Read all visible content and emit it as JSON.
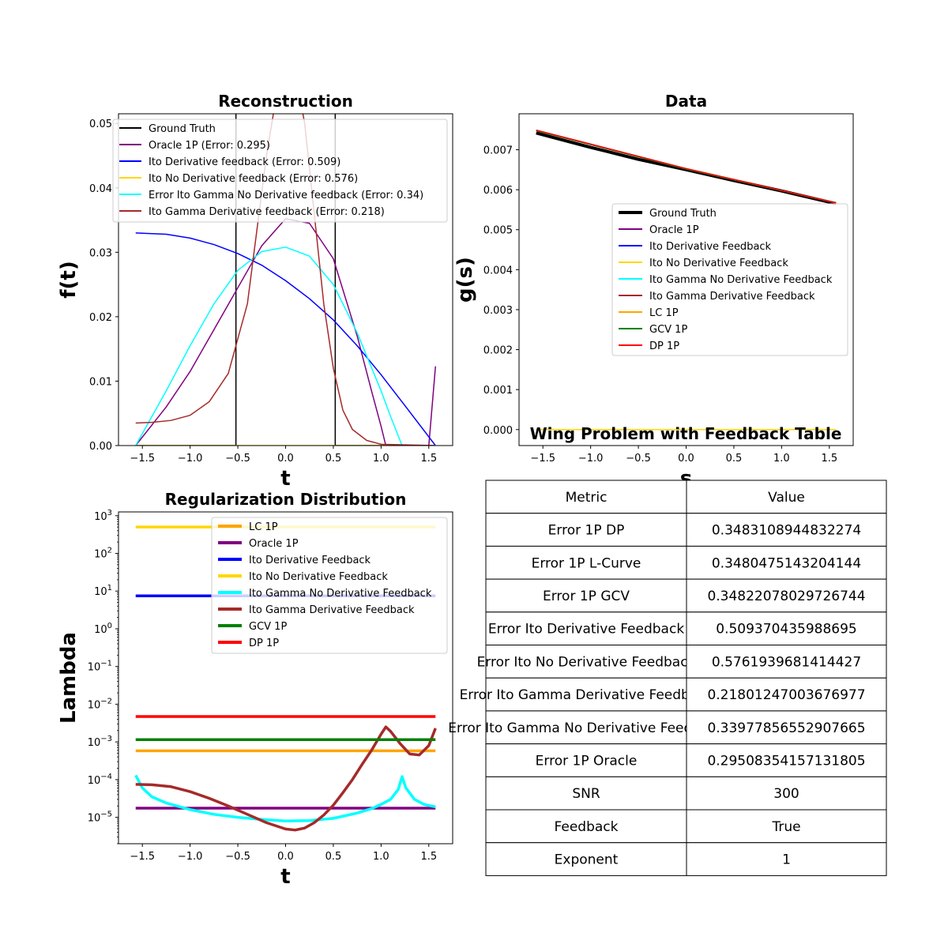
{
  "chart_data": [
    {
      "id": "reconstruction",
      "type": "line",
      "title": "Reconstruction",
      "xlabel": "t",
      "ylabel": "f(t)",
      "xlim": [
        -1.75,
        1.75
      ],
      "ylim": [
        0,
        0.0515
      ],
      "xticks": [
        "-1.5",
        "-1.0",
        "-0.5",
        "0.0",
        "0.5",
        "1.0",
        "1.5"
      ],
      "yticks": [
        "0.00",
        "0.01",
        "0.02",
        "0.03",
        "0.04",
        "0.05"
      ],
      "legend_position": "top-right",
      "series": [
        {
          "name": "Ground Truth",
          "color": "#000000",
          "x": [
            -1.57,
            -0.52,
            -0.52,
            0.52,
            0.52,
            1.57
          ],
          "y": [
            0,
            0,
            0.052,
            0.052,
            0,
            0
          ]
        },
        {
          "name": "Oracle 1P (Error: 0.295)",
          "color": "#800080",
          "x": [
            -1.57,
            -1.25,
            -1.0,
            -0.75,
            -0.5,
            -0.25,
            0.0,
            0.25,
            0.5,
            0.75,
            0.9,
            1.0,
            1.05,
            1.2,
            1.5,
            1.57
          ],
          "y": [
            0,
            0.006,
            0.0115,
            0.018,
            0.0245,
            0.031,
            0.0352,
            0.0345,
            0.029,
            0.017,
            0.0085,
            0.003,
            0,
            0,
            0,
            0.0123
          ]
        },
        {
          "name": "Ito Derivative feedback (Error: 0.509)",
          "color": "#0000ff",
          "x": [
            -1.57,
            -1.25,
            -1.0,
            -0.75,
            -0.5,
            -0.25,
            0.0,
            0.25,
            0.5,
            0.75,
            1.0,
            1.25,
            1.57
          ],
          "y": [
            0.033,
            0.0328,
            0.0322,
            0.0312,
            0.0298,
            0.028,
            0.0256,
            0.0228,
            0.0195,
            0.0155,
            0.011,
            0.0062,
            0
          ]
        },
        {
          "name": "Ito No Derivative feedback (Error: 0.576)",
          "color": "#ffd700",
          "x": [
            -1.57,
            1.57
          ],
          "y": [
            0,
            0
          ]
        },
        {
          "name": "Error Ito Gamma No Derivative feedback (Error: 0.34)",
          "color": "#00ffff",
          "x": [
            -1.57,
            -1.25,
            -1.0,
            -0.75,
            -0.5,
            -0.25,
            0.0,
            0.25,
            0.5,
            0.75,
            1.0,
            1.1,
            1.22,
            1.57
          ],
          "y": [
            0,
            0.0085,
            0.0155,
            0.022,
            0.0272,
            0.0301,
            0.0308,
            0.0294,
            0.025,
            0.0175,
            0.0085,
            0.0045,
            0,
            0
          ]
        },
        {
          "name": "Ito Gamma Derivative feedback (Error: 0.218)",
          "color": "#a52a2a",
          "x": [
            -1.57,
            -1.4,
            -1.2,
            -1.0,
            -0.8,
            -0.6,
            -0.4,
            -0.2,
            -0.1,
            0.0,
            0.1,
            0.2,
            0.3,
            0.4,
            0.5,
            0.6,
            0.7,
            0.85,
            1.0,
            1.57
          ],
          "y": [
            0.0035,
            0.0036,
            0.0039,
            0.0047,
            0.0068,
            0.0112,
            0.022,
            0.045,
            0.054,
            0.06,
            0.058,
            0.05,
            0.036,
            0.022,
            0.012,
            0.0055,
            0.0025,
            0.0008,
            0.0002,
            0
          ]
        }
      ]
    },
    {
      "id": "data",
      "type": "line",
      "title": "Data",
      "xlabel": "s",
      "ylabel": "g(s)",
      "xlim": [
        -1.75,
        1.75
      ],
      "ylim": [
        -0.0004,
        0.0079
      ],
      "xticks": [
        "-1.5",
        "-1.0",
        "-0.5",
        "0.0",
        "0.5",
        "1.0",
        "1.5"
      ],
      "yticks": [
        "0.000",
        "0.001",
        "0.002",
        "0.003",
        "0.004",
        "0.005",
        "0.006",
        "0.007"
      ],
      "legend_position": "center-right",
      "series": [
        {
          "name": "Ground Truth",
          "color": "#000000",
          "width": 4,
          "x": [
            -1.57,
            -1.0,
            -0.5,
            0.0,
            0.5,
            1.0,
            1.57
          ],
          "y": [
            0.00742,
            0.00706,
            0.00676,
            0.0065,
            0.00623,
            0.00597,
            0.00565
          ]
        },
        {
          "name": "Oracle 1P",
          "color": "#800080",
          "width": 1.5,
          "x": [
            -1.57,
            0.0,
            1.57
          ],
          "y": [
            0.00748,
            0.00652,
            0.00567
          ]
        },
        {
          "name": "Ito Derivative Feedback",
          "color": "#0000ff",
          "width": 1.5,
          "x": [
            -1.57,
            0.0,
            1.57
          ],
          "y": [
            0.00748,
            0.00652,
            0.00567
          ]
        },
        {
          "name": "Ito No Derivative Feedback",
          "color": "#ffd700",
          "width": 1.5,
          "x": [
            -1.57,
            1.57
          ],
          "y": [
            0,
            0
          ]
        },
        {
          "name": "Ito Gamma No Derivative Feedback",
          "color": "#00ffff",
          "width": 1.5,
          "x": [
            -1.57,
            0.0,
            1.57
          ],
          "y": [
            0.00748,
            0.00652,
            0.00567
          ]
        },
        {
          "name": "Ito Gamma Derivative Feedback",
          "color": "#a52a2a",
          "width": 1.5,
          "x": [
            -1.57,
            0.0,
            1.57
          ],
          "y": [
            0.00748,
            0.00652,
            0.00567
          ]
        },
        {
          "name": "LC 1P",
          "color": "#ffa500",
          "width": 1.5,
          "x": [
            -1.57,
            0.0,
            1.57
          ],
          "y": [
            0.00748,
            0.00652,
            0.00567
          ]
        },
        {
          "name": "GCV 1P",
          "color": "#008000",
          "width": 1.5,
          "x": [
            -1.57,
            0.0,
            1.57
          ],
          "y": [
            0.00748,
            0.00652,
            0.00567
          ]
        },
        {
          "name": "DP 1P",
          "color": "#ff0000",
          "width": 1.5,
          "x": [
            -1.57,
            0.0,
            1.57
          ],
          "y": [
            0.00749,
            0.00653,
            0.00567
          ]
        }
      ]
    },
    {
      "id": "regularization",
      "type": "line",
      "title": "Regularization Distribution",
      "xlabel": "t",
      "ylabel": "Lambda",
      "yscale": "log",
      "xlim": [
        -1.75,
        1.75
      ],
      "ylim_log10": [
        -5.7,
        3.1
      ],
      "xticks": [
        "-1.5",
        "-1.0",
        "-0.5",
        "0.0",
        "0.5",
        "1.0",
        "1.5"
      ],
      "yticks_exp": [
        -5,
        -4,
        -3,
        -2,
        -1,
        0,
        1,
        2,
        3
      ],
      "yticks_base": "10",
      "legend_position": "top-right",
      "series": [
        {
          "name": "LC 1P",
          "color": "#ffa500",
          "x": [
            -1.57,
            1.57
          ],
          "y": [
            0.00058,
            0.00058
          ]
        },
        {
          "name": "Oracle 1P",
          "color": "#800080",
          "x": [
            -1.57,
            1.57
          ],
          "y": [
            1.75e-05,
            1.75e-05
          ]
        },
        {
          "name": "Ito Derivative Feedback",
          "color": "#0000ff",
          "x": [
            -1.57,
            1.57
          ],
          "y": [
            7.5,
            7.5
          ]
        },
        {
          "name": "Ito No Derivative Feedback",
          "color": "#ffd700",
          "x": [
            -1.57,
            1.57
          ],
          "y": [
            500,
            500
          ]
        },
        {
          "name": "Ito Gamma No Derivative Feedback",
          "color": "#00ffff",
          "x": [
            -1.57,
            -1.5,
            -1.4,
            -1.25,
            -1.0,
            -0.75,
            -0.5,
            -0.25,
            0.0,
            0.25,
            0.5,
            0.75,
            0.9,
            1.0,
            1.1,
            1.18,
            1.22,
            1.26,
            1.35,
            1.45,
            1.57
          ],
          "y": [
            0.00013,
            6e-05,
            3.5e-05,
            2.4e-05,
            1.6e-05,
            1.2e-05,
            1e-05,
            8.8e-06,
            8e-06,
            8.2e-06,
            9.4e-06,
            1.3e-05,
            1.7e-05,
            2.2e-05,
            3e-05,
            5.5e-05,
            0.00012,
            6e-05,
            3e-05,
            2.2e-05,
            1.9e-05
          ]
        },
        {
          "name": "Ito Gamma Derivative Feedback",
          "color": "#a52a2a",
          "x": [
            -1.57,
            -1.4,
            -1.2,
            -1.0,
            -0.8,
            -0.6,
            -0.4,
            -0.2,
            0.0,
            0.1,
            0.2,
            0.3,
            0.4,
            0.5,
            0.6,
            0.7,
            0.8,
            0.9,
            1.0,
            1.05,
            1.1,
            1.2,
            1.3,
            1.4,
            1.5,
            1.57
          ],
          "y": [
            7.5e-05,
            7.3e-05,
            6.5e-05,
            4.8e-05,
            3.2e-05,
            2e-05,
            1.2e-05,
            7.2e-06,
            4.9e-06,
            4.6e-06,
            5.2e-06,
            7.2e-06,
            1.15e-05,
            2.1e-05,
            4.5e-05,
            0.0001,
            0.00025,
            0.0006,
            0.0016,
            0.0025,
            0.0019,
            0.0009,
            0.00048,
            0.00045,
            0.0008,
            0.0023
          ]
        },
        {
          "name": "GCV 1P",
          "color": "#008000",
          "x": [
            -1.57,
            1.57
          ],
          "y": [
            0.00115,
            0.00115
          ]
        },
        {
          "name": "DP 1P",
          "color": "#ff0000",
          "x": [
            -1.57,
            1.57
          ],
          "y": [
            0.0047,
            0.0047
          ]
        }
      ]
    },
    {
      "id": "feedback-table",
      "type": "table",
      "title": "Wing Problem with Feedback Table",
      "columns": [
        "Metric",
        "Value"
      ],
      "rows": [
        [
          "Error 1P DP",
          "0.3483108944832274"
        ],
        [
          "Error 1P L-Curve",
          "0.3480475143204144"
        ],
        [
          "Error 1P GCV",
          "0.34822078029726744"
        ],
        [
          "Error Ito Derivative Feedback",
          "0.509370435988695"
        ],
        [
          "Error Ito No Derivative Feedback",
          "0.5761939681414427"
        ],
        [
          "Error Ito Gamma Derivative Feedback",
          "0.21801247003676977"
        ],
        [
          "Error Ito Gamma No Derivative Feedback",
          "0.33977856552907665"
        ],
        [
          "Error 1P Oracle",
          "0.29508354157131805"
        ],
        [
          "SNR",
          "300"
        ],
        [
          "Feedback",
          "True"
        ],
        [
          "Exponent",
          "1"
        ]
      ]
    }
  ]
}
